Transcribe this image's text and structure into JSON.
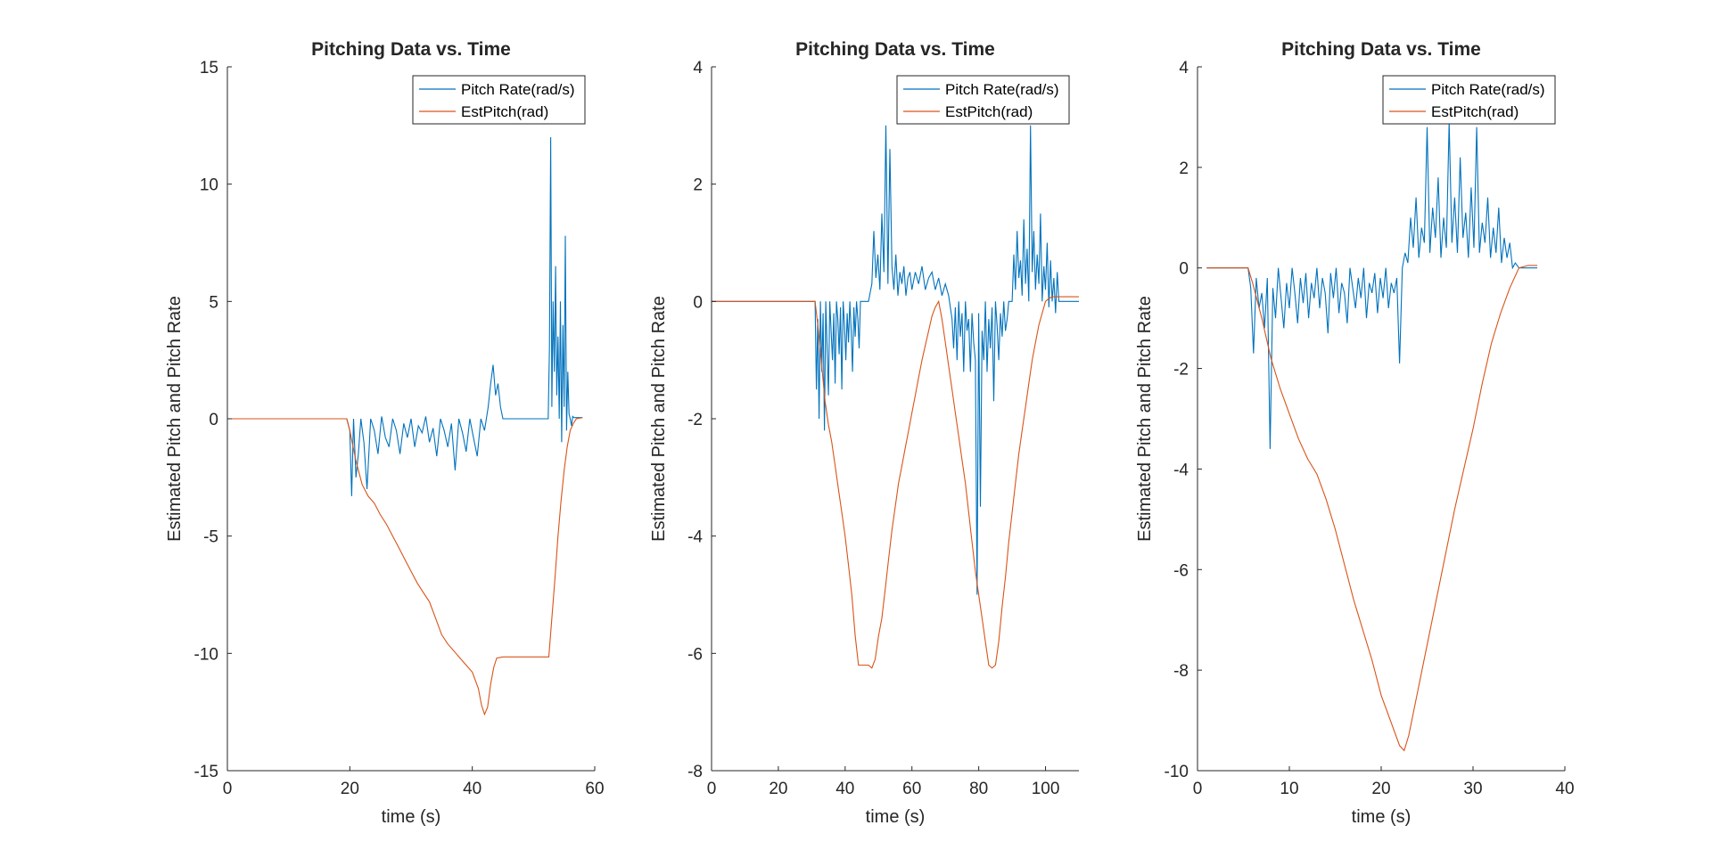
{
  "chart_data": [
    {
      "type": "line",
      "title": "Pitching Data vs. Time",
      "xlabel": "time (s)",
      "ylabel": "Estimated Pitch and Pitch Rate",
      "xlim": [
        0,
        60
      ],
      "ylim": [
        -15,
        15
      ],
      "xticks": [
        0,
        20,
        40,
        60
      ],
      "yticks": [
        -15,
        -10,
        -5,
        0,
        5,
        10,
        15
      ],
      "legend": "top-right",
      "series": [
        {
          "name": "Pitch Rate(rad/s)",
          "color": "#0072BD",
          "x": [
            0,
            19.5,
            20,
            20.3,
            20.6,
            21,
            21.4,
            21.8,
            22.3,
            22.8,
            23.4,
            24,
            24.6,
            25.2,
            25.8,
            26.4,
            27,
            27.6,
            28.2,
            28.8,
            29.4,
            30,
            30.6,
            31.2,
            31.8,
            32.4,
            33,
            33.6,
            34.2,
            34.8,
            35.4,
            36,
            36.6,
            37.2,
            37.8,
            38.4,
            39,
            39.6,
            40.2,
            40.8,
            41.4,
            42,
            42.6,
            43,
            43.4,
            43.8,
            44.2,
            44.6,
            45,
            46,
            48,
            50,
            52.4,
            52.6,
            52.8,
            53,
            53.2,
            53.4,
            53.6,
            53.8,
            54,
            54.2,
            54.4,
            54.6,
            54.8,
            55,
            55.2,
            55.4,
            55.6,
            55.8,
            56,
            56.2,
            56.4,
            56.6,
            57,
            58
          ],
          "y": [
            0,
            0,
            -0.5,
            -3.3,
            0,
            -2.5,
            -1.5,
            0,
            -1,
            -3,
            0,
            -0.5,
            -1.5,
            0.1,
            -0.8,
            -1.2,
            0,
            -0.5,
            -1.5,
            -0.2,
            -0.8,
            0,
            -1.2,
            -0.3,
            -0.6,
            0.1,
            -1,
            -0.4,
            -1.6,
            0,
            -0.5,
            -1.2,
            -0.2,
            -2.2,
            0,
            -0.6,
            -1.4,
            0,
            -0.8,
            -1.6,
            0,
            -0.5,
            0.5,
            1.5,
            2.3,
            1,
            1.5,
            0.5,
            0,
            0,
            0,
            0,
            0,
            3,
            12,
            0.5,
            5,
            2,
            6.5,
            1,
            3.5,
            0,
            5,
            -1,
            4,
            0.5,
            7.8,
            -0.5,
            2,
            0.2,
            0,
            -0.3,
            0.1,
            0.05,
            0.05,
            0.05
          ]
        },
        {
          "name": "EstPitch(rad)",
          "color": "#D95319",
          "x": [
            0,
            19.5,
            20,
            21,
            22,
            23,
            24,
            25,
            26,
            27,
            28,
            29,
            30,
            31,
            32,
            33,
            34,
            35,
            36,
            37,
            38,
            39,
            40,
            41,
            41.5,
            42,
            42.5,
            43,
            43.5,
            44,
            45,
            46,
            48,
            50,
            52,
            52.5,
            53,
            53.5,
            54,
            54.5,
            55,
            55.5,
            56,
            56.5,
            57,
            58
          ],
          "y": [
            0,
            0,
            -0.5,
            -1.8,
            -2.8,
            -3.3,
            -3.6,
            -4.1,
            -4.5,
            -5,
            -5.5,
            -6,
            -6.5,
            -7,
            -7.4,
            -7.8,
            -8.5,
            -9.2,
            -9.6,
            -9.9,
            -10.2,
            -10.5,
            -10.8,
            -11.5,
            -12.2,
            -12.6,
            -12.3,
            -11.3,
            -10.6,
            -10.2,
            -10.15,
            -10.15,
            -10.15,
            -10.15,
            -10.15,
            -10.15,
            -8.5,
            -6.8,
            -5,
            -3.5,
            -2.2,
            -1.2,
            -0.5,
            -0.2,
            0,
            0.05
          ]
        }
      ]
    },
    {
      "type": "line",
      "title": "Pitching Data vs. Time",
      "xlabel": "time (s)",
      "ylabel": "Estimated Pitch and Pitch Rate",
      "xlim": [
        0,
        110
      ],
      "ylim": [
        -8,
        4
      ],
      "xticks": [
        0,
        20,
        40,
        60,
        80,
        100
      ],
      "yticks": [
        -8,
        -6,
        -4,
        -2,
        0,
        2,
        4
      ],
      "legend": "top-right",
      "series": [
        {
          "name": "Pitch Rate(rad/s)",
          "color": "#0072BD",
          "x": [
            0,
            31,
            31.4,
            31.8,
            32.2,
            32.6,
            33,
            33.4,
            33.8,
            34.2,
            34.6,
            35,
            35.4,
            35.8,
            36.2,
            36.6,
            37,
            37.4,
            37.8,
            38.2,
            38.6,
            39,
            39.4,
            39.8,
            40.2,
            40.6,
            41,
            41.4,
            41.8,
            42.2,
            42.6,
            43,
            43.4,
            43.8,
            44.2,
            44.6,
            45,
            47,
            48,
            48.6,
            49.2,
            49.8,
            50.4,
            51,
            51.6,
            52.2,
            52.8,
            53.4,
            54,
            54.6,
            55.2,
            55.8,
            56.4,
            57,
            57.6,
            58.2,
            58.8,
            59.4,
            60,
            61,
            62,
            63,
            64,
            65,
            66,
            67,
            68,
            69,
            70,
            71,
            72,
            72.5,
            73,
            73.5,
            74,
            74.5,
            75,
            75.5,
            76,
            76.5,
            77,
            77.5,
            78,
            78.5,
            79,
            79.5,
            80,
            80.5,
            81,
            81.5,
            82,
            82.5,
            83,
            83.5,
            84,
            84.5,
            85,
            85.5,
            86,
            86.5,
            87,
            87.5,
            88,
            88.5,
            89,
            90,
            90.5,
            91,
            91.5,
            92,
            92.5,
            93,
            93.5,
            94,
            94.5,
            95,
            95.5,
            96,
            96.5,
            97,
            97.5,
            98,
            98.5,
            99,
            99.5,
            100,
            100.5,
            101,
            101.5,
            102,
            102.5,
            103,
            103.5,
            104,
            105,
            110
          ],
          "y": [
            0,
            0,
            -1.5,
            -0.3,
            -2,
            0,
            -1.2,
            -0.2,
            -2.2,
            0,
            -0.8,
            -1.6,
            0,
            -0.5,
            -1,
            -0.2,
            -1.4,
            0,
            -0.3,
            -0.9,
            -0.1,
            -1.5,
            0,
            -0.4,
            -1,
            -0.2,
            -0.7,
            0,
            -0.5,
            -1.2,
            -0.1,
            -0.6,
            0,
            -0.3,
            -0.8,
            0,
            0,
            0,
            0.3,
            1.2,
            0.4,
            0.8,
            0.2,
            1.5,
            0.5,
            3,
            0.3,
            2.6,
            0.6,
            0.2,
            0.8,
            0.1,
            0.5,
            0.3,
            0.6,
            0.1,
            0.4,
            0.5,
            0.2,
            0.5,
            0.3,
            0.6,
            0.2,
            0.4,
            0.5,
            0.2,
            0.4,
            0.1,
            0.3,
            0.1,
            -0.3,
            -0.8,
            -0.1,
            -1,
            0,
            -0.6,
            -0.2,
            -1.2,
            0,
            -0.5,
            -0.3,
            -1.2,
            -0.2,
            -0.7,
            -1,
            -5,
            -0.2,
            -3.5,
            -0.5,
            -1,
            0,
            -1.2,
            -0.3,
            -0.8,
            -0.1,
            -1.7,
            0,
            -0.4,
            -1,
            -0.2,
            -0.6,
            0,
            -0.5,
            -0.3,
            0,
            0,
            0.8,
            0.2,
            1.2,
            0.4,
            0.7,
            0.1,
            1.4,
            0.3,
            0.9,
            0,
            3,
            0.5,
            1.2,
            0.2,
            0.8,
            0.3,
            1.5,
            0,
            0.6,
            0.2,
            1,
            -0.1,
            0.7,
            0,
            0.4,
            -0.2,
            0.5,
            0,
            0,
            0
          ]
        },
        {
          "name": "EstPitch(rad)",
          "color": "#D95319",
          "x": [
            0,
            31,
            32,
            33,
            34,
            35,
            36,
            37,
            38,
            39,
            40,
            41,
            42,
            43,
            44,
            45,
            46,
            47,
            48,
            49,
            50,
            51,
            52,
            53,
            54,
            55,
            56,
            57,
            58,
            59,
            60,
            61,
            62,
            63,
            64,
            65,
            66,
            67,
            68,
            69,
            70,
            71,
            72,
            73,
            74,
            75,
            76,
            77,
            78,
            79,
            80,
            81,
            82,
            83,
            84,
            85,
            86,
            87,
            88,
            89,
            90,
            91,
            92,
            93,
            94,
            95,
            96,
            97,
            98,
            99,
            100,
            101,
            102,
            103,
            104,
            105,
            110
          ],
          "y": [
            0,
            0,
            -0.5,
            -1.1,
            -1.7,
            -2.1,
            -2.4,
            -2.8,
            -3.2,
            -3.6,
            -4,
            -4.5,
            -5,
            -5.7,
            -6.2,
            -6.2,
            -6.2,
            -6.2,
            -6.25,
            -6.1,
            -5.7,
            -5.4,
            -4.9,
            -4.4,
            -3.9,
            -3.5,
            -3.1,
            -2.8,
            -2.5,
            -2.2,
            -1.9,
            -1.6,
            -1.3,
            -1,
            -0.75,
            -0.5,
            -0.25,
            -0.1,
            0,
            -0.3,
            -0.7,
            -1.1,
            -1.5,
            -1.9,
            -2.3,
            -2.7,
            -3.1,
            -3.6,
            -4.1,
            -4.6,
            -5,
            -5.4,
            -5.8,
            -6.2,
            -6.25,
            -6.2,
            -5.8,
            -5.2,
            -4.7,
            -4.1,
            -3.6,
            -3.1,
            -2.6,
            -2.2,
            -1.8,
            -1.4,
            -1,
            -0.7,
            -0.4,
            -0.2,
            0,
            0.05,
            0.08,
            0.08,
            0.08,
            0.08,
            0.08
          ]
        }
      ]
    },
    {
      "type": "line",
      "title": "Pitching Data vs. Time",
      "xlabel": "time (s)",
      "ylabel": "Estimated Pitch and Pitch Rate",
      "xlim": [
        0,
        40
      ],
      "ylim": [
        -10,
        4
      ],
      "xticks": [
        0,
        10,
        20,
        30,
        40
      ],
      "yticks": [
        -10,
        -8,
        -6,
        -4,
        -2,
        0,
        2,
        4
      ],
      "legend": "top-right",
      "series": [
        {
          "name": "Pitch Rate(rad/s)",
          "color": "#0072BD",
          "x": [
            1,
            5.5,
            5.8,
            6.1,
            6.4,
            6.7,
            7,
            7.3,
            7.6,
            7.9,
            8.2,
            8.5,
            8.8,
            9.1,
            9.4,
            9.7,
            10,
            10.3,
            10.6,
            10.9,
            11.2,
            11.5,
            11.8,
            12.1,
            12.4,
            12.7,
            13,
            13.3,
            13.6,
            13.9,
            14.2,
            14.5,
            14.8,
            15.1,
            15.4,
            15.7,
            16,
            16.3,
            16.6,
            16.9,
            17.2,
            17.5,
            17.8,
            18.1,
            18.4,
            18.7,
            19,
            19.3,
            19.6,
            19.9,
            20.2,
            20.5,
            20.8,
            21.1,
            21.4,
            21.7,
            22,
            22.3,
            22.6,
            22.9,
            23.2,
            23.5,
            23.8,
            24.1,
            24.4,
            24.7,
            25,
            25.3,
            25.6,
            25.9,
            26.2,
            26.5,
            26.8,
            27.1,
            27.4,
            27.7,
            28,
            28.3,
            28.6,
            28.9,
            29.2,
            29.5,
            29.8,
            30.1,
            30.4,
            30.7,
            31,
            31.3,
            31.6,
            31.9,
            32.2,
            32.5,
            32.8,
            33.1,
            33.4,
            33.7,
            34,
            34.3,
            34.6,
            35,
            36,
            37
          ],
          "y": [
            0,
            0,
            -0.4,
            -1.7,
            -0.2,
            -0.8,
            -0.5,
            -1.2,
            -0.2,
            -3.6,
            -0.4,
            -1,
            0,
            -0.6,
            -1.2,
            -0.3,
            -0.8,
            0,
            -0.5,
            -1.1,
            -0.2,
            -0.7,
            -0.1,
            -1,
            -0.3,
            -0.6,
            0,
            -0.8,
            -0.2,
            -0.5,
            -1.3,
            -0.1,
            -0.6,
            0,
            -0.9,
            -0.3,
            -0.5,
            -1.1,
            0,
            -0.4,
            -0.8,
            -0.2,
            -0.6,
            0,
            -1,
            -0.3,
            -0.5,
            -0.1,
            -0.9,
            -0.2,
            -0.6,
            0,
            -0.8,
            -0.3,
            -0.5,
            -0.2,
            -1.9,
            0,
            0.3,
            0.1,
            1,
            0.4,
            1.4,
            0.2,
            0.8,
            0.5,
            2.8,
            0.3,
            1.2,
            0.6,
            1.8,
            0.2,
            1,
            0.4,
            2.9,
            0.5,
            1.4,
            0.3,
            2.2,
            0.6,
            1.1,
            0.2,
            1.6,
            0.4,
            2.8,
            0.3,
            0.9,
            0.5,
            1.4,
            0.2,
            0.8,
            0.3,
            1.2,
            0.1,
            0.6,
            0.2,
            0.5,
            0,
            0.1,
            0,
            0,
            0
          ]
        },
        {
          "name": "EstPitch(rad)",
          "color": "#D95319",
          "x": [
            1,
            5.5,
            6,
            7,
            8,
            9,
            10,
            11,
            12,
            13,
            14,
            15,
            16,
            17,
            18,
            19,
            20,
            21,
            22,
            22.5,
            23,
            24,
            25,
            26,
            27,
            28,
            29,
            30,
            31,
            32,
            33,
            34,
            35,
            36,
            37
          ],
          "y": [
            0,
            0,
            -0.3,
            -1,
            -1.8,
            -2.4,
            -2.9,
            -3.4,
            -3.8,
            -4.1,
            -4.6,
            -5.2,
            -5.9,
            -6.6,
            -7.2,
            -7.8,
            -8.5,
            -9,
            -9.5,
            -9.6,
            -9.3,
            -8.4,
            -7.5,
            -6.6,
            -5.7,
            -4.8,
            -4,
            -3.2,
            -2.3,
            -1.5,
            -0.9,
            -0.4,
            0,
            0.05,
            0.05
          ]
        }
      ]
    }
  ]
}
